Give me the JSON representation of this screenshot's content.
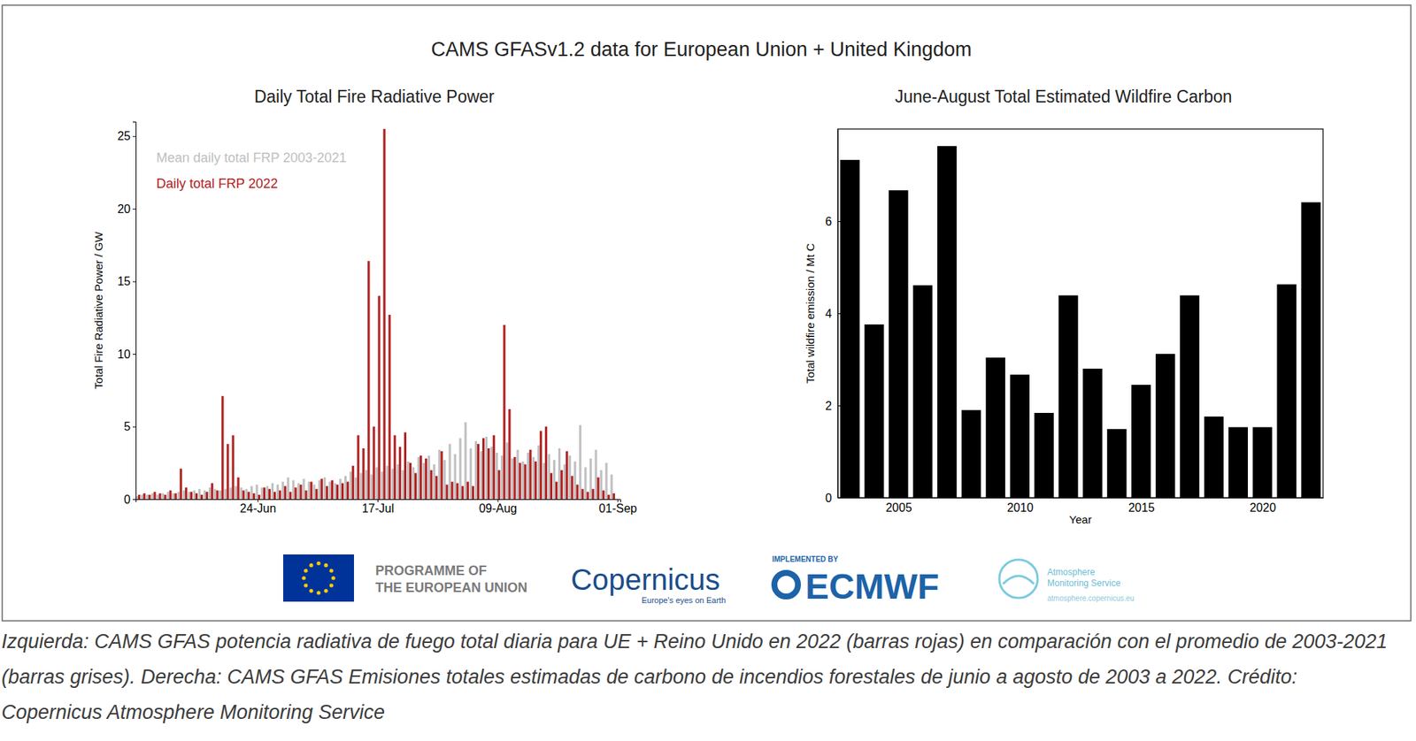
{
  "title": "CAMS GFASv1.2  data for European Union + United Kingdom",
  "chart_data": [
    {
      "type": "bar",
      "title": "Daily Total Fire Radiative Power",
      "categories": [
        null,
        null,
        null,
        null,
        null,
        null,
        null,
        null,
        null,
        null,
        null,
        null,
        null,
        null,
        null,
        null,
        null,
        null,
        null,
        null,
        null,
        null,
        null,
        "24-Jun",
        null,
        null,
        null,
        null,
        null,
        null,
        null,
        null,
        null,
        null,
        null,
        null,
        null,
        null,
        null,
        null,
        null,
        null,
        null,
        null,
        null,
        null,
        "17-Jul",
        null,
        null,
        null,
        null,
        null,
        null,
        null,
        null,
        null,
        null,
        null,
        null,
        null,
        null,
        null,
        null,
        null,
        null,
        null,
        null,
        null,
        null,
        "09-Aug",
        null,
        null,
        null,
        null,
        null,
        null,
        null,
        null,
        null,
        null,
        null,
        null,
        null,
        null,
        null,
        null,
        null,
        null,
        null,
        null,
        null,
        null,
        "01-Sep"
      ],
      "series": [
        {
          "name": "Mean daily total FRP 2003-2021",
          "color": "#c0c0c0",
          "values": [
            0.2,
            0.3,
            0.3,
            0.4,
            0.3,
            0.4,
            0.5,
            0.4,
            0.5,
            0.6,
            0.5,
            0.6,
            0.7,
            0.6,
            0.8,
            0.7,
            0.6,
            0.7,
            0.8,
            0.9,
            0.8,
            0.7,
            0.9,
            1.0,
            0.8,
            0.9,
            1.1,
            1.0,
            1.2,
            1.5,
            1.3,
            1.1,
            1.4,
            1.2,
            1.0,
            1.3,
            1.5,
            1.2,
            1.1,
            1.4,
            1.6,
            1.9,
            1.5,
            1.8,
            2.0,
            1.7,
            2.2,
            1.9,
            2.3,
            2.1,
            2.4,
            2.0,
            2.6,
            2.2,
            2.9,
            2.5,
            3.0,
            2.4,
            3.4,
            2.7,
            3.8,
            3.1,
            4.2,
            5.3,
            3.5,
            4.0,
            3.3,
            4.3,
            3.6,
            3.2,
            3.0,
            3.9,
            2.8,
            3.4,
            2.6,
            3.2,
            2.9,
            3.7,
            2.5,
            3.1,
            2.7,
            3.5,
            2.4,
            3.0,
            2.6,
            5.1,
            2.2,
            2.8,
            3.4,
            2.0,
            2.5,
            1.7,
            null
          ]
        },
        {
          "name": "Daily total FRP 2022",
          "color": "#b22222",
          "values": [
            0.3,
            0.4,
            0.3,
            0.5,
            0.4,
            0.3,
            0.6,
            0.4,
            2.1,
            0.8,
            0.5,
            0.4,
            0.3,
            0.5,
            1.1,
            0.6,
            7.1,
            3.8,
            4.4,
            1.5,
            0.6,
            0.5,
            0.4,
            0.3,
            0.8,
            0.7,
            0.5,
            0.6,
            0.9,
            0.5,
            0.8,
            1.0,
            0.6,
            1.2,
            0.7,
            1.4,
            0.9,
            1.3,
            1.0,
            1.1,
            1.2,
            2.3,
            4.4,
            3.5,
            16.4,
            5.0,
            14.0,
            25.5,
            12.7,
            4.4,
            3.6,
            4.6,
            2.5,
            1.8,
            3.0,
            2.8,
            2.0,
            1.6,
            3.3,
            1.0,
            1.2,
            1.1,
            0.9,
            1.2,
            0.9,
            3.8,
            4.2,
            3.5,
            4.4,
            2.0,
            12.0,
            6.2,
            2.9,
            2.5,
            2.4,
            3.4,
            2.6,
            4.7,
            5.0,
            1.8,
            1.2,
            2.0,
            3.3,
            1.6,
            1.0,
            0.7,
            0.5,
            0.7,
            1.5,
            0.6,
            0.3,
            0.4,
            null
          ]
        }
      ],
      "ylabel": "Total Fire Radiative Power / GW",
      "ylim": [
        0,
        26
      ],
      "yticks": [
        0,
        5,
        10,
        15,
        20,
        25
      ],
      "legend": "upper left"
    },
    {
      "type": "bar",
      "title": "June-August  Total Estimated Wildfire Carbon",
      "x": [
        2003,
        2004,
        2005,
        2006,
        2007,
        2008,
        2009,
        2010,
        2011,
        2012,
        2013,
        2014,
        2015,
        2016,
        2017,
        2018,
        2019,
        2020,
        2021,
        2022
      ],
      "values": [
        7.33,
        3.76,
        6.67,
        4.61,
        7.63,
        1.9,
        3.04,
        2.67,
        1.84,
        4.39,
        2.8,
        1.49,
        2.45,
        3.12,
        4.39,
        1.76,
        1.53,
        1.53,
        4.63,
        6.41
      ],
      "color": "#000000",
      "xlabel": "Year",
      "ylabel": "Total wildfire emission / Mt C",
      "xlim": [
        2002.5,
        2022.5
      ],
      "xticks": [
        2005,
        2010,
        2015,
        2020
      ],
      "ylim": [
        0,
        8
      ],
      "yticks": [
        0,
        2,
        4,
        6
      ]
    }
  ],
  "logos": {
    "eu": [
      "PROGRAMME OF",
      "THE EUROPEAN UNION"
    ],
    "copernicus": "Copernicus",
    "copernicus_tagline": "Europe's eyes on Earth",
    "implemented_by": "IMPLEMENTED BY",
    "ecmwf": "ECMWF",
    "cams": [
      "Atmosphere",
      "Monitoring Service"
    ],
    "cams_url": "atmosphere.copernicus.eu"
  },
  "caption": "Izquierda: CAMS GFAS potencia radiativa de fuego total diaria para UE + Reino Unido en 2022 (barras rojas) en comparación con el promedio de 2003-2021 (barras grises). Derecha: CAMS GFAS Emisiones totales estimadas de carbono de incendios forestales de junio a agosto de 2003 a 2022. Crédito: Copernicus Atmosphere Monitoring Service"
}
